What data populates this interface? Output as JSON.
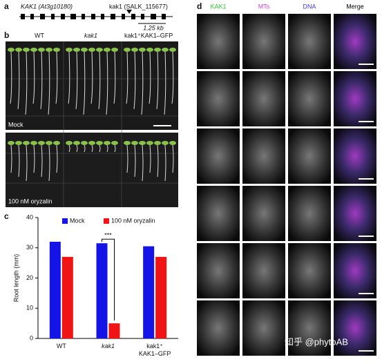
{
  "panel_a": {
    "label": "a",
    "gene": "KAK1 (At3g10180)",
    "allele": "kak1 (SALK_115677)",
    "scale": "1.25 kb"
  },
  "panel_b": {
    "label": "b",
    "genotypes": [
      "WT",
      "kak1",
      "kak1⁺KAK1–GFP"
    ],
    "conditions": [
      "Mock",
      "100 nM oryzalin"
    ]
  },
  "panel_c": {
    "label": "c"
  },
  "chart_data": {
    "type": "bar",
    "ylabel": "Root length (mm)",
    "categories": [
      "WT",
      "kak1",
      "kak1⁺ KAK1–GFP"
    ],
    "series": [
      {
        "name": "Mock",
        "color": "#1414e6",
        "values": [
          32,
          31.5,
          30.5
        ]
      },
      {
        "name": "100 nM oryzalin",
        "color": "#f01414",
        "values": [
          27,
          5,
          27
        ]
      }
    ],
    "ylim": [
      0,
      40
    ],
    "yticks": [
      0,
      10,
      20,
      30,
      40
    ],
    "annotation": "***"
  },
  "panel_d": {
    "label": "d",
    "columns": [
      "KAK1",
      "MTs",
      "DNA",
      "Merge"
    ]
  },
  "watermark": "知乎 @phytoAB"
}
